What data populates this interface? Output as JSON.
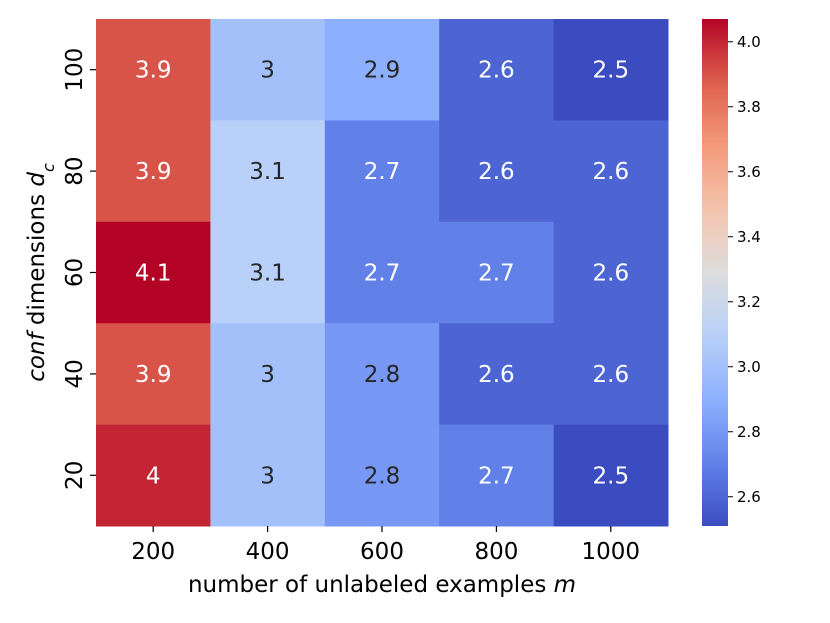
{
  "chart_data": {
    "type": "heatmap",
    "title": "",
    "xlabel": "number of unlabeled examples m",
    "xlabel_parts": [
      {
        "text": "number of unlabeled examples ",
        "style": "normal"
      },
      {
        "text": "m",
        "style": "italic"
      }
    ],
    "ylabel": "conf dimensions d_c",
    "ylabel_parts": [
      {
        "text": "conf",
        "style": "italic"
      },
      {
        "text": " dimensions ",
        "style": "normal"
      },
      {
        "text": "d",
        "style": "italic"
      },
      {
        "text": "c",
        "style": "italic-sub"
      }
    ],
    "x_categories": [
      "200",
      "400",
      "600",
      "800",
      "1000"
    ],
    "y_categories": [
      "100",
      "80",
      "60",
      "40",
      "20"
    ],
    "values": [
      [
        3.9,
        3.0,
        2.9,
        2.6,
        2.5
      ],
      [
        3.9,
        3.1,
        2.7,
        2.6,
        2.6
      ],
      [
        4.1,
        3.1,
        2.7,
        2.7,
        2.6
      ],
      [
        3.9,
        3.0,
        2.8,
        2.6,
        2.6
      ],
      [
        4.0,
        3.0,
        2.8,
        2.7,
        2.5
      ]
    ],
    "cell_labels": [
      [
        "3.9",
        "3",
        "2.9",
        "2.6",
        "2.5"
      ],
      [
        "3.9",
        "3.1",
        "2.7",
        "2.6",
        "2.6"
      ],
      [
        "4.1",
        "3.1",
        "2.7",
        "2.7",
        "2.6"
      ],
      [
        "3.9",
        "3",
        "2.8",
        "2.6",
        "2.6"
      ],
      [
        "4",
        "3",
        "2.8",
        "2.7",
        "2.5"
      ]
    ],
    "colormap": "coolwarm",
    "colorbar": {
      "range": [
        2.51,
        4.07
      ],
      "ticks": [
        2.6,
        2.8,
        3.0,
        3.2,
        3.4,
        3.6,
        3.8,
        4.0
      ],
      "tick_labels": [
        "2.6",
        "2.8",
        "3.0",
        "3.2",
        "3.4",
        "3.6",
        "3.8",
        "4.0"
      ]
    }
  }
}
